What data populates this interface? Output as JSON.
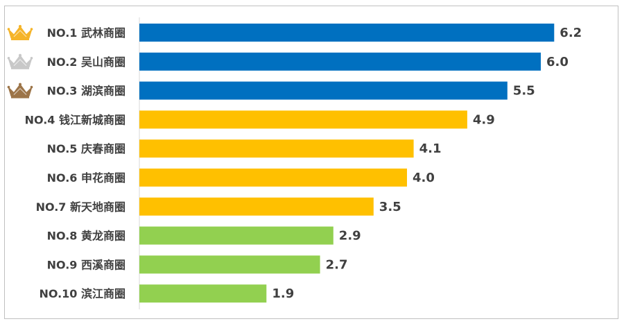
{
  "chart_data": {
    "type": "bar",
    "orientation": "horizontal",
    "categories": [
      "NO.1 武林商圈",
      "NO.2 吴山商圈",
      "NO.3 湖滨商圈",
      "NO.4 钱江新城商圈",
      "NO.5 庆春商圈",
      "NO.6 申花商圈",
      "NO.7 新天地商圈",
      "NO.8 黄龙商圈",
      "NO.9 西溪商圈",
      "NO.10 滨江商圈"
    ],
    "values": [
      6.2,
      6.0,
      5.5,
      4.9,
      4.1,
      4.0,
      3.5,
      2.9,
      2.7,
      1.9
    ],
    "value_labels": [
      "6.2",
      "6.0",
      "5.5",
      "4.9",
      "4.1",
      "4.0",
      "3.5",
      "2.9",
      "2.7",
      "1.9"
    ],
    "bar_colors": [
      "#0070c0",
      "#0070c0",
      "#0070c0",
      "#ffc000",
      "#ffc000",
      "#ffc000",
      "#ffc000",
      "#92d050",
      "#92d050",
      "#92d050"
    ],
    "xlim": [
      0,
      6.8
    ],
    "grid": false,
    "legend": "none",
    "rank_icons": [
      {
        "rank": 1,
        "icon": "gold-crown-icon",
        "color": "#f5b428"
      },
      {
        "rank": 2,
        "icon": "silver-crown-icon",
        "color": "#c8c8c8"
      },
      {
        "rank": 3,
        "icon": "bronze-crown-icon",
        "color": "#9c7448"
      }
    ]
  }
}
